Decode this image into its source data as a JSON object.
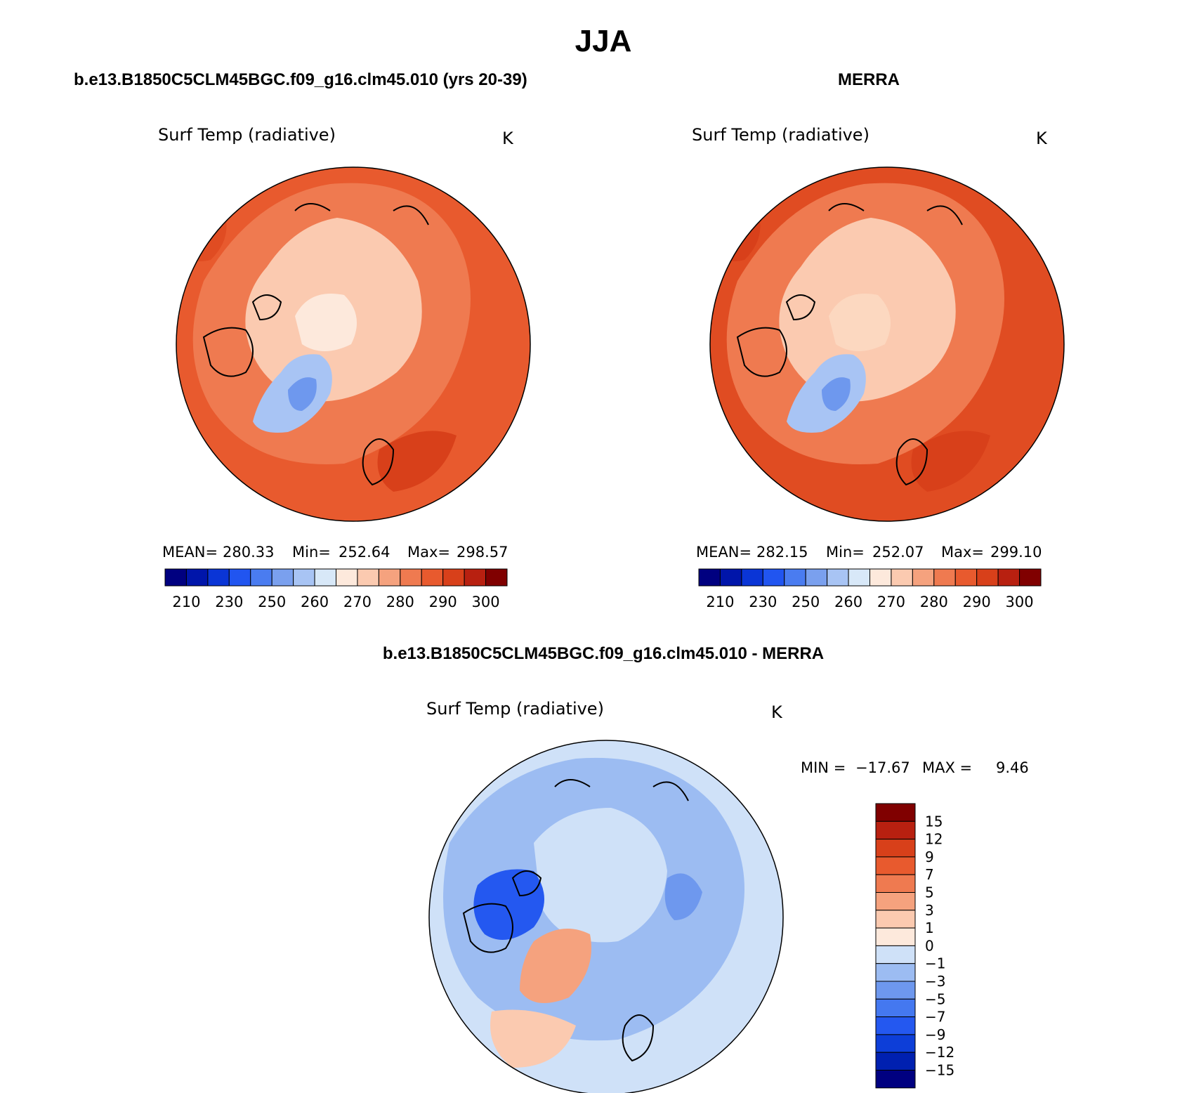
{
  "page": {
    "season_title": "JJA"
  },
  "panels": [
    {
      "case_title": "b.e13.B1850C5CLM45BGC.f09_g16.clm45.010 (yrs 20-39)",
      "variable": "Surf Temp (radiative)",
      "units": "K",
      "stats": {
        "mean_label": "MEAN=",
        "mean": "280.33",
        "min_label": "Min=",
        "min": "252.64",
        "max_label": "Max=",
        "max": "298.57"
      }
    },
    {
      "case_title": "MERRA",
      "variable": "Surf Temp (radiative)",
      "units": "K",
      "stats": {
        "mean_label": "MEAN=",
        "mean": "282.15",
        "min_label": "Min=",
        "min": "252.07",
        "max_label": "Max=",
        "max": "299.10"
      }
    },
    {
      "case_title": "b.e13.B1850C5CLM45BGC.f09_g16.clm45.010 - MERRA",
      "variable": "Surf Temp (radiative)",
      "units": "K",
      "stats": {
        "min_label": "MIN =",
        "min": "−17.67",
        "max_label": "MAX =",
        "max": "9.46"
      }
    }
  ],
  "colorbar_abs": {
    "colors": [
      "#000080",
      "#0015aa",
      "#0a35d6",
      "#2155f0",
      "#4a7cf0",
      "#7aa0ee",
      "#a8c4f4",
      "#d8e8f8",
      "#fde9dc",
      "#fbcab0",
      "#f5a27e",
      "#ef7a50",
      "#e85a2e",
      "#d8401a",
      "#b82010",
      "#800000"
    ],
    "labels": [
      "210",
      "230",
      "250",
      "260",
      "270",
      "280",
      "290",
      "300"
    ]
  },
  "colorbar_diff": {
    "colors": [
      "#000080",
      "#0020b0",
      "#0d3ed8",
      "#2458f0",
      "#4478f0",
      "#6e98ee",
      "#9cbcf2",
      "#cfe1f8",
      "#fde9dc",
      "#fbcab0",
      "#f5a27e",
      "#ef7a50",
      "#e85a2e",
      "#d8401a",
      "#b82010",
      "#800000"
    ],
    "labels": [
      "15",
      "12",
      "9",
      "7",
      "5",
      "3",
      "1",
      "0",
      "−1",
      "−3",
      "−5",
      "−7",
      "−9",
      "−12",
      "−15"
    ]
  },
  "map_colors": {
    "panel1": {
      "ocean_outer": "#e85a2e",
      "mid": "#ef7a50",
      "arctic": "#fbcab0",
      "core": "#fde9dc",
      "greenland": "#a8c4f4",
      "greenland_core": "#6e98ee"
    },
    "panel2": {
      "ocean_outer": "#e04c22",
      "mid": "#ef7a50",
      "arctic": "#fbcab0",
      "core": "#fcd8c0",
      "greenland": "#a8c4f4",
      "greenland_core": "#6e98ee"
    },
    "panel3": {
      "base": "#cfe1f8",
      "light": "#9cbcf2",
      "mid": "#6e98ee",
      "strong": "#2458f0",
      "warm": "#fbcab0",
      "warm2": "#f5a27e"
    }
  }
}
